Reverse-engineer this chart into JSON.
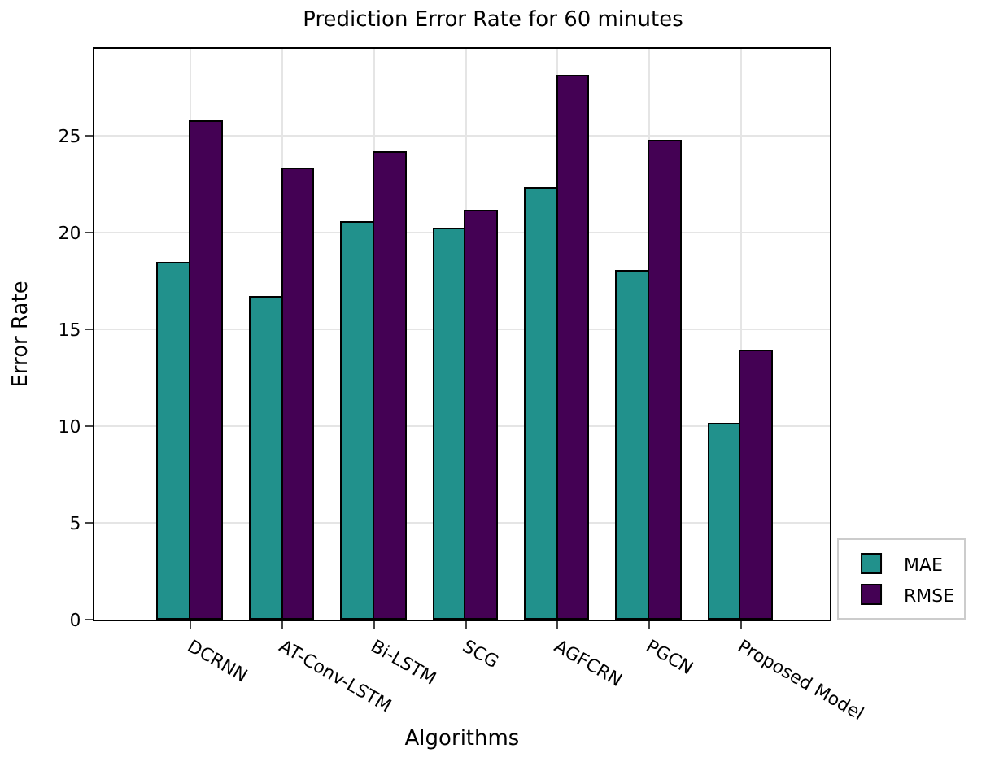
{
  "chart_data": {
    "type": "bar",
    "title": "Prediction Error Rate for 60 minutes",
    "xlabel": "Algorithms",
    "ylabel": "Error Rate",
    "categories": [
      "DCRNN",
      "AT-Conv-LSTM",
      "Bi-LSTM",
      "SCG",
      "AGFCRN",
      "PGCN",
      "Proposed Model"
    ],
    "series": [
      {
        "name": "MAE",
        "color": "#21918c",
        "values": [
          18.4,
          16.6,
          20.5,
          20.2,
          22.3,
          18.0,
          10.1
        ]
      },
      {
        "name": "RMSE",
        "color": "#440154",
        "values": [
          25.7,
          23.3,
          24.1,
          21.1,
          28.1,
          24.7,
          13.9
        ]
      }
    ],
    "ylim": [
      0,
      29.5
    ],
    "yticks": [
      0,
      5,
      10,
      15,
      20,
      25
    ],
    "grid": true,
    "legend": "bottom right"
  }
}
